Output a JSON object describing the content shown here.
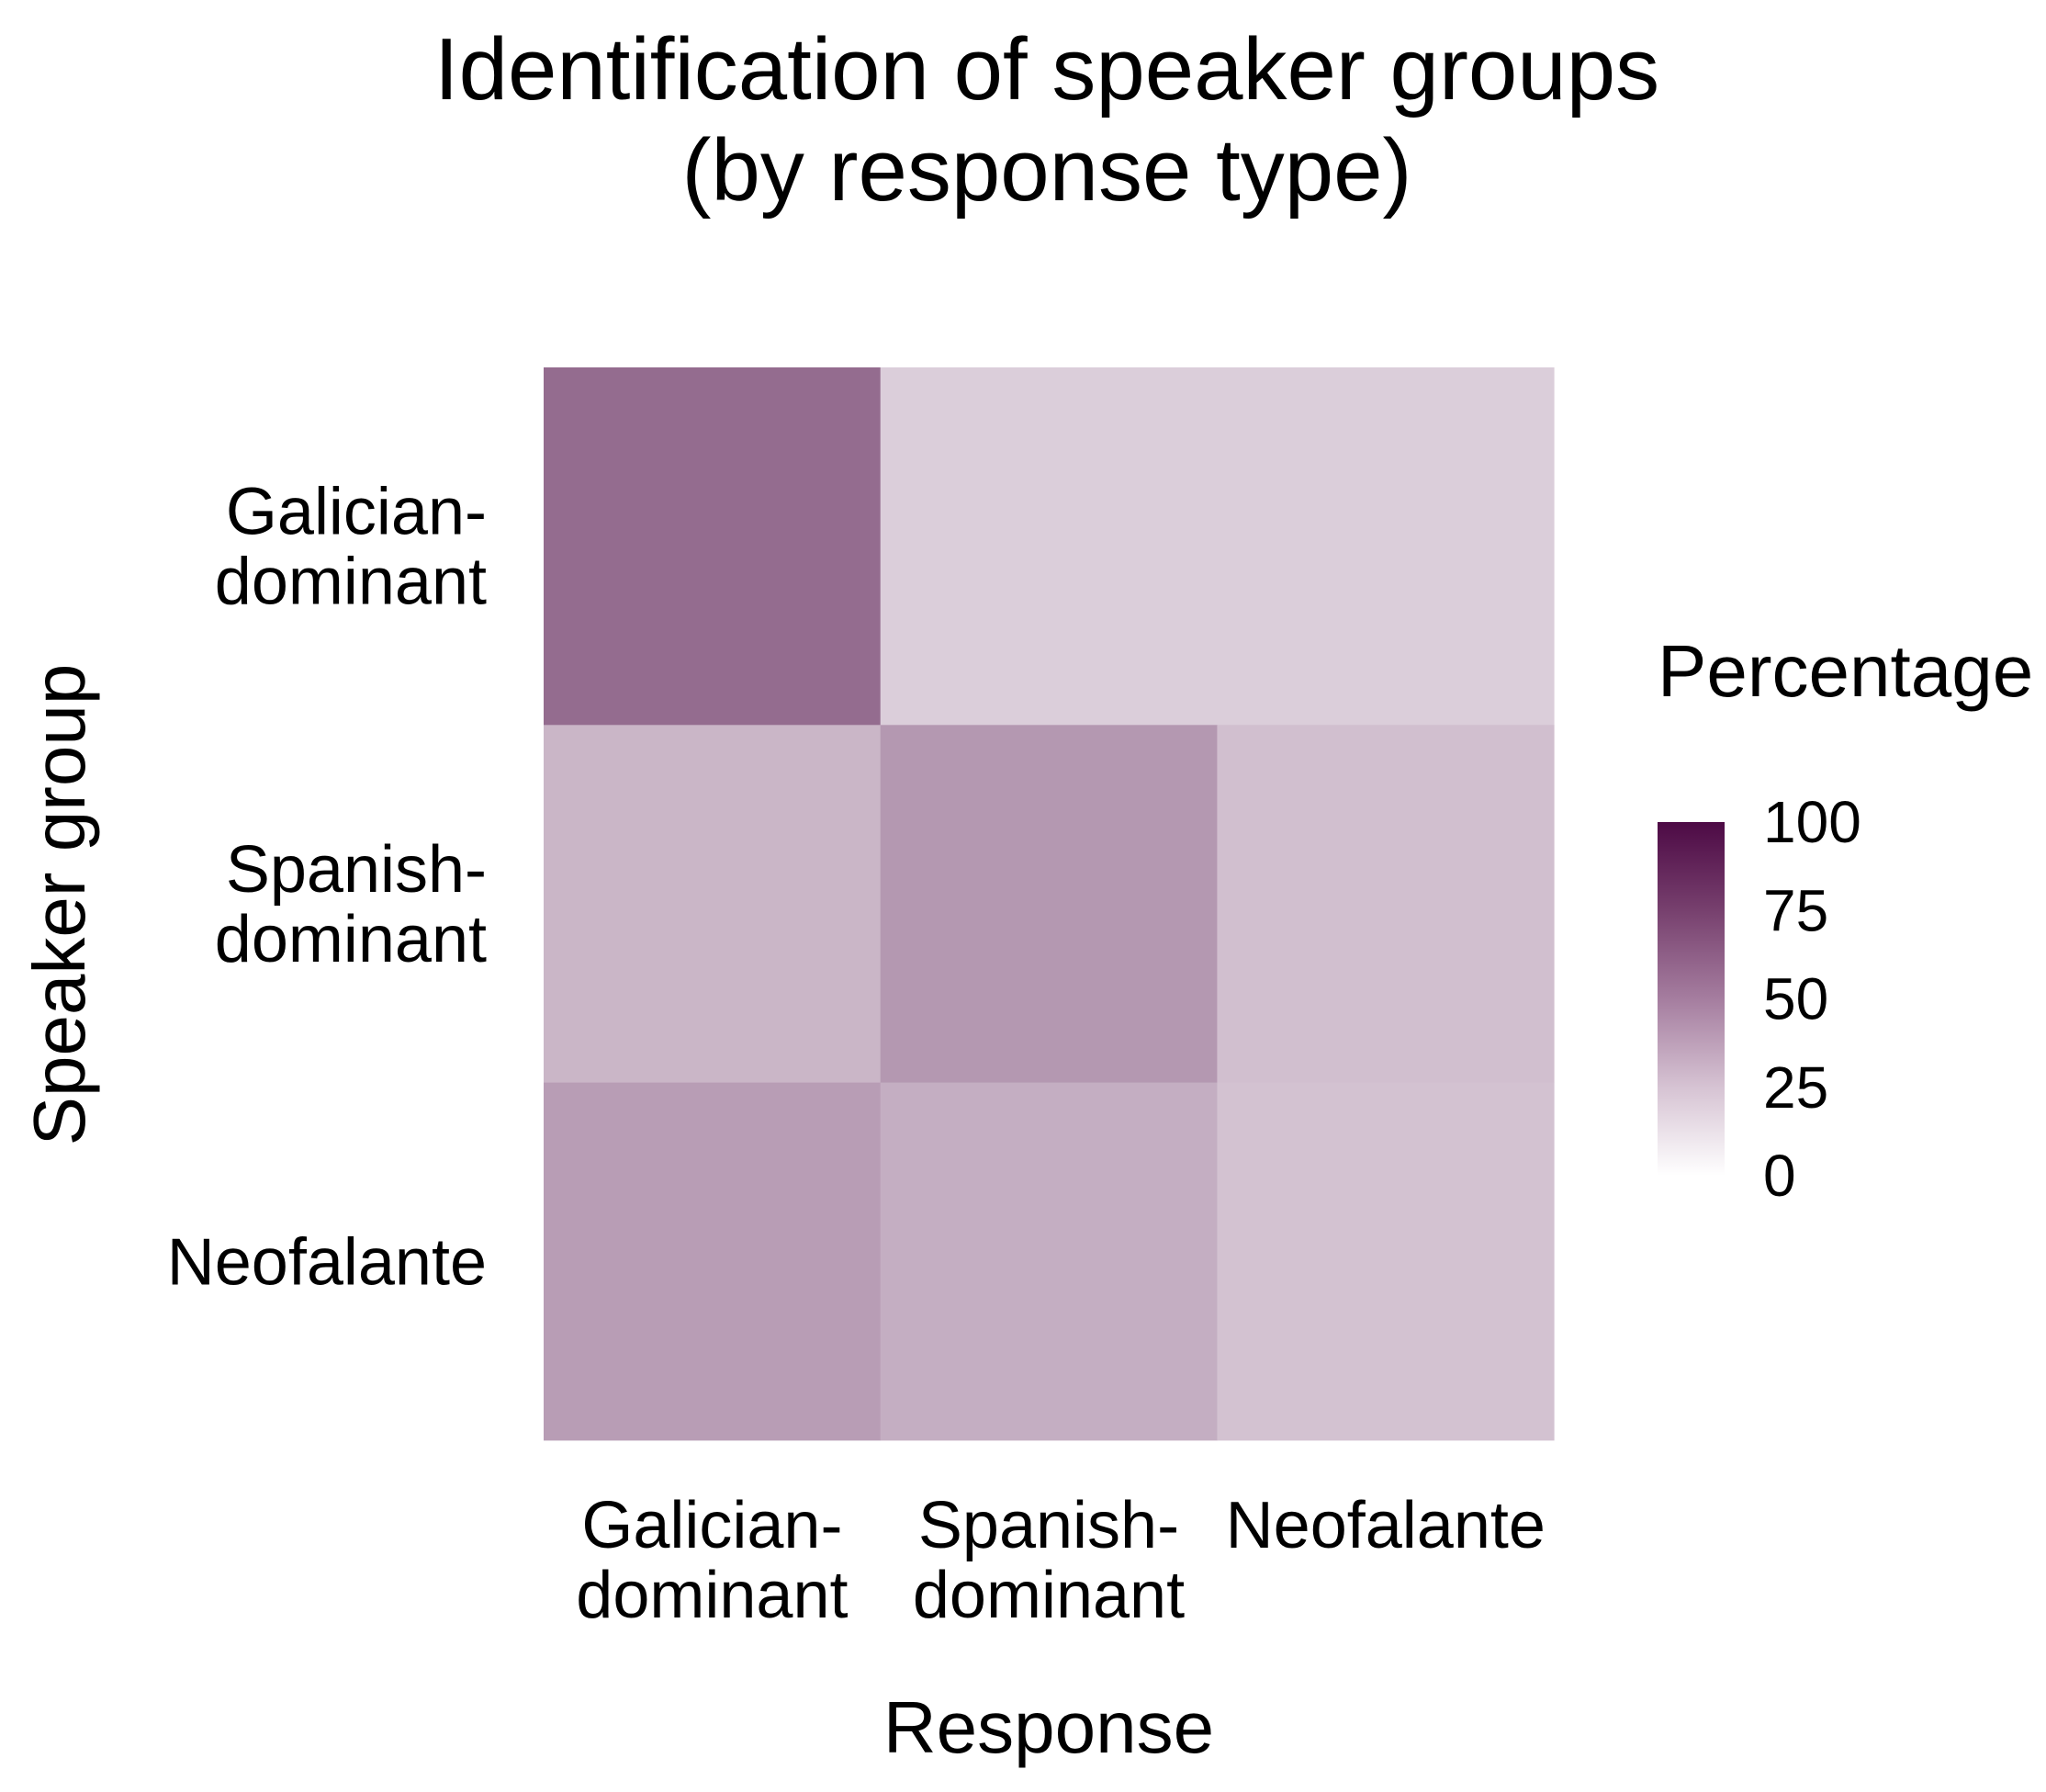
{
  "chart_data": {
    "type": "heatmap",
    "title_lines": [
      "Identification of speaker groups",
      "(by response type)"
    ],
    "xlabel": "Response",
    "ylabel": "Speaker group",
    "x_categories": [
      [
        "Galician-",
        "dominant"
      ],
      [
        "Spanish-",
        "dominant"
      ],
      [
        "Neofalante"
      ]
    ],
    "y_categories": [
      [
        "Galician-",
        "dominant"
      ],
      [
        "Spanish-",
        "dominant"
      ],
      [
        "Neofalante"
      ]
    ],
    "values": [
      [
        60,
        20,
        20
      ],
      [
        30,
        42,
        26
      ],
      [
        40,
        33,
        25
      ]
    ],
    "legend": {
      "title": "Percentage",
      "ticks": [
        0,
        25,
        50,
        75,
        100
      ],
      "range": [
        0,
        100
      ],
      "low_color": "#ffffff",
      "high_color": "#4d0a45",
      "placement": "right"
    },
    "grid": false
  }
}
